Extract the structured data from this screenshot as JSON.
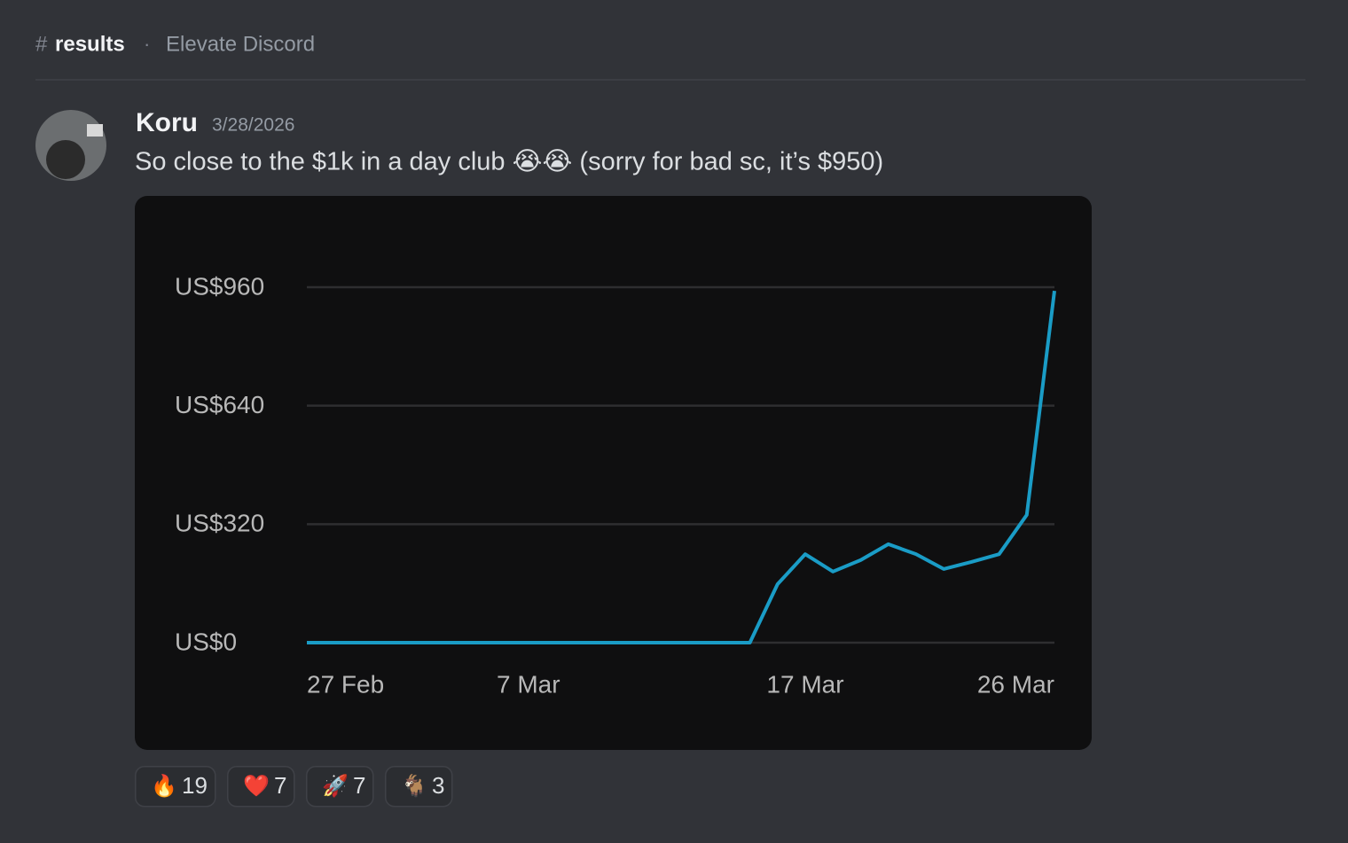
{
  "header": {
    "channel_prefix": "#",
    "channel": "results",
    "separator": "·",
    "server": "Elevate Discord"
  },
  "message": {
    "author": "Koru",
    "timestamp": "3/28/2026",
    "text": "So close to the $1k in a day club 😭😭 (sorry for bad sc, it’s $950)"
  },
  "chart_data": {
    "type": "line",
    "categories": [
      "27 Feb",
      null,
      null,
      null,
      null,
      null,
      null,
      null,
      "7 Mar",
      null,
      null,
      null,
      null,
      null,
      null,
      null,
      null,
      null,
      "17 Mar",
      null,
      null,
      null,
      null,
      null,
      null,
      null,
      null,
      "26 Mar"
    ],
    "series": [
      {
        "color": "#1a9cc6",
        "values": [
          0,
          0,
          0,
          0,
          0,
          0,
          0,
          0,
          0,
          0,
          0,
          0,
          0,
          0,
          0,
          0,
          0,
          158,
          239,
          192,
          223,
          266,
          239,
          199,
          218,
          239,
          345,
          950
        ]
      }
    ],
    "ylim": [
      0,
      960
    ],
    "yticks": [
      {
        "value": 0,
        "label": "US$0"
      },
      {
        "value": 320,
        "label": "US$320"
      },
      {
        "value": 640,
        "label": "US$640"
      },
      {
        "value": 960,
        "label": "US$960"
      }
    ],
    "grid": true
  },
  "reactions": [
    {
      "emoji": "🔥",
      "count": "19"
    },
    {
      "emoji": "❤️",
      "count": "7"
    },
    {
      "emoji": "🚀",
      "count": "7"
    },
    {
      "emoji": "🐐",
      "count": "3"
    }
  ]
}
